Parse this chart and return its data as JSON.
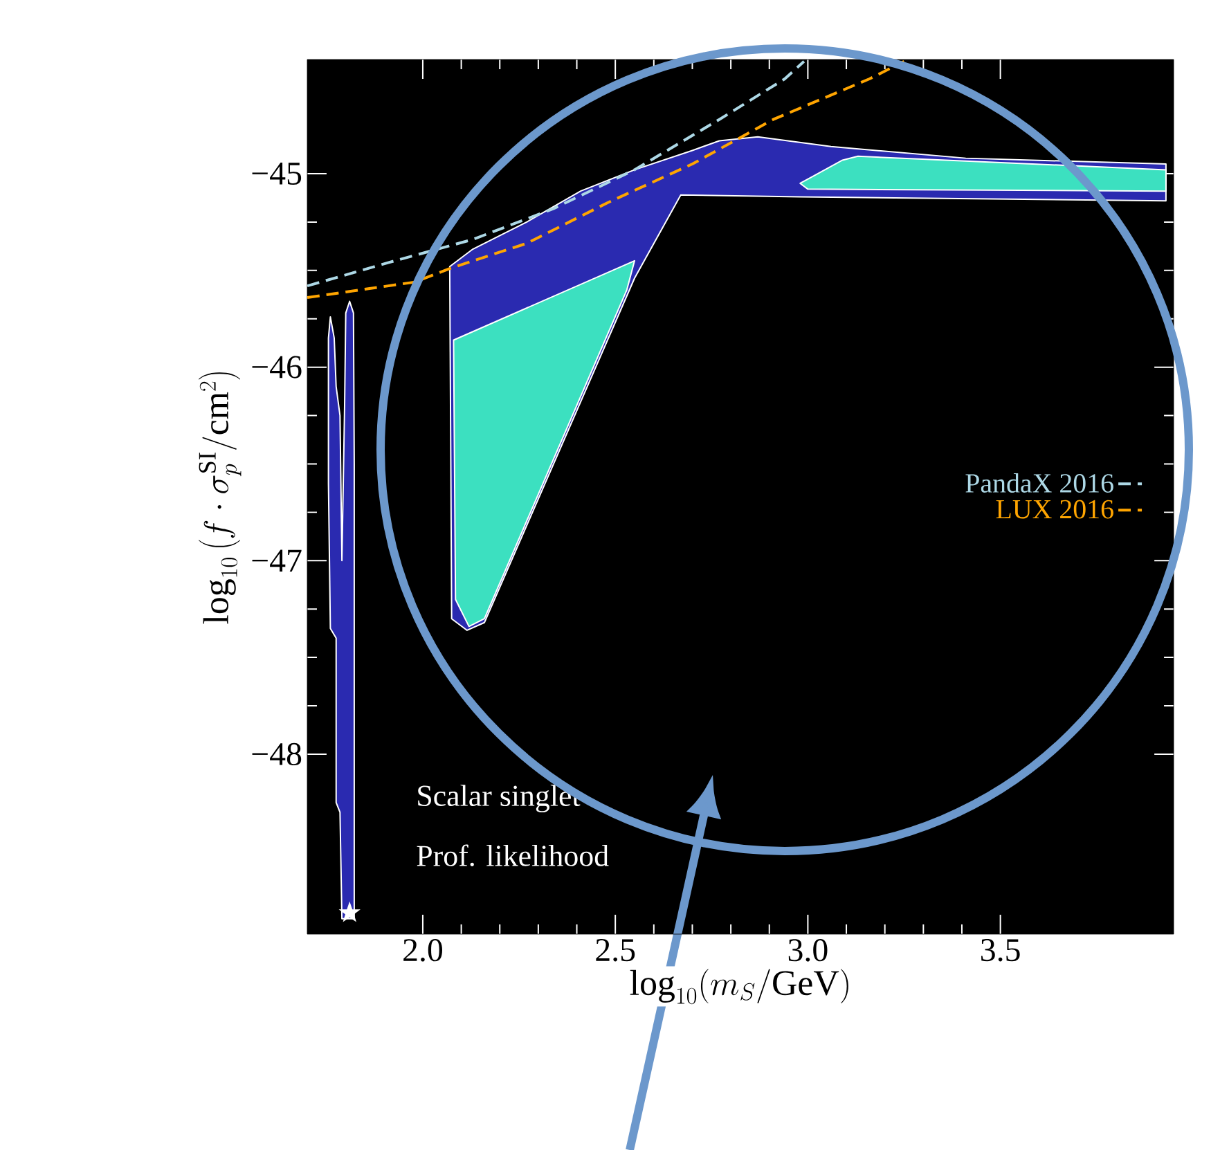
{
  "chart_data": {
    "type": "line",
    "xlabel": "\\log_{10}(m_S/\\mathrm{GeV})",
    "ylabel": "\\log_{10}\\left(f\\cdot\\sigma_p^{\\mathrm{SI}}/\\mathrm{cm}^2\\right)",
    "xlim": [
      1.7,
      3.95
    ],
    "ylim": [
      -48.93,
      -44.41
    ],
    "xticks": [
      {
        "value": 2.0,
        "label": "2.0"
      },
      {
        "value": 2.5,
        "label": "2.5"
      },
      {
        "value": 3.0,
        "label": "3.0"
      },
      {
        "value": 3.5,
        "label": "3.5"
      }
    ],
    "yticks": [
      {
        "value": -48,
        "label": "−48"
      },
      {
        "value": -47,
        "label": "−47"
      },
      {
        "value": -46,
        "label": "−46"
      },
      {
        "value": -45,
        "label": "−45"
      }
    ],
    "legend": "right",
    "line_style": "dashed",
    "annotations": [
      "Scalar singlet",
      "Prof. likelihood"
    ],
    "series": [
      {
        "type": "area",
        "color": "#2a2ab0",
        "x": [
          2.07,
          2.13,
          2.27,
          2.41,
          2.55,
          2.7,
          2.77,
          2.87,
          3.06,
          3.41,
          3.93,
          3.93,
          2.98,
          2.67,
          2.55,
          2.16,
          2.115,
          2.075,
          2.07
        ],
        "values": [
          -45.48,
          -45.39,
          -45.25,
          -45.09,
          -44.98,
          -44.88,
          -44.83,
          -44.81,
          -44.86,
          -44.92,
          -44.95,
          -45.14,
          -45.12,
          -45.11,
          -45.54,
          -47.32,
          -47.36,
          -47.3,
          -45.48
        ]
      },
      {
        "type": "area",
        "color": "#3ce0c0",
        "x": [
          2.08,
          2.55,
          2.53,
          2.16,
          2.12,
          2.085,
          2.08
        ],
        "values": [
          -45.86,
          -45.45,
          -45.6,
          -47.3,
          -47.34,
          -47.2,
          -45.86
        ]
      },
      {
        "type": "area",
        "color": "#3ce0c0",
        "x": [
          2.98,
          3.09,
          3.13,
          3.93,
          3.93,
          3.0,
          2.98
        ],
        "values": [
          -45.05,
          -44.93,
          -44.91,
          -44.98,
          -45.09,
          -45.08,
          -45.05
        ]
      },
      {
        "type": "area",
        "color": "#2a2ab0",
        "x": [
          1.755,
          1.76,
          1.77,
          1.775,
          1.785,
          1.79,
          1.797,
          1.8,
          1.81,
          1.82,
          1.822,
          1.822,
          1.79,
          1.785,
          1.775,
          1.775,
          1.76,
          1.755,
          1.755
        ],
        "values": [
          -45.85,
          -45.74,
          -45.85,
          -46.1,
          -46.25,
          -47.0,
          -46.2,
          -45.72,
          -45.66,
          -45.72,
          -46.5,
          -48.85,
          -48.85,
          -48.3,
          -48.25,
          -47.4,
          -47.35,
          -46.6,
          -45.85
        ]
      },
      {
        "name": "PandaX 2016",
        "color": "#add8e6",
        "x": [
          1.7,
          1.91,
          2.13,
          2.34,
          2.55,
          2.77,
          2.94,
          2.99
        ],
        "values": [
          -45.58,
          -45.46,
          -45.34,
          -45.18,
          -44.98,
          -44.72,
          -44.51,
          -44.42
        ]
      },
      {
        "name": "LUX 2016",
        "color": "#ffa500",
        "x": [
          1.7,
          1.98,
          2.07,
          2.27,
          2.48,
          2.7,
          2.91,
          3.16,
          3.25
        ],
        "values": [
          -45.64,
          -45.56,
          -45.49,
          -45.36,
          -45.15,
          -44.95,
          -44.72,
          -44.51,
          -44.42
        ]
      },
      {
        "type": "scatter",
        "marker": "star",
        "color": "#ffffff",
        "x": [
          1.81
        ],
        "values": [
          -48.82
        ]
      }
    ]
  }
}
